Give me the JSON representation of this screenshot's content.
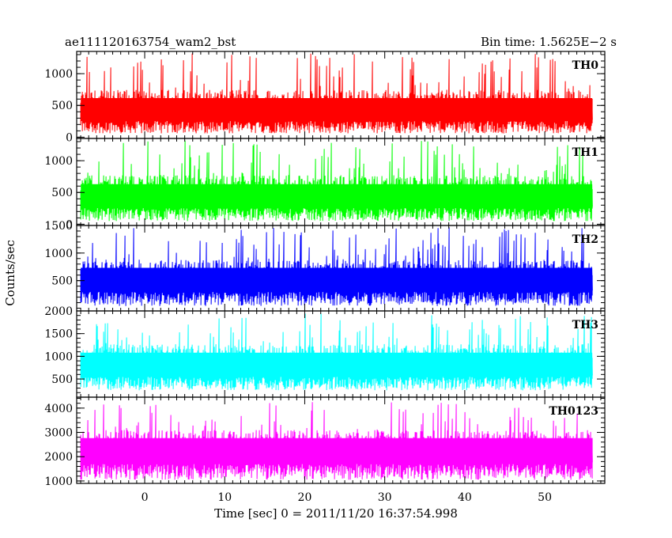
{
  "header": {
    "left_title": "ae111120163754_wam2_bst",
    "right_title": "Bin time: 1.5625E−2 s"
  },
  "chart_data": {
    "type": "line",
    "title": "ae111120163754_wam2_bst",
    "subtitle": "Bin time: 1.5625E−2 s",
    "xlabel": "Time [sec] 0 = 2011/11/20 16:37:54.998",
    "ylabel": "Counts/sec",
    "xlim": [
      -8.5,
      57.5
    ],
    "x_range_data": [
      -8,
      56
    ],
    "x_ticks": [
      0,
      10,
      20,
      30,
      40,
      50
    ],
    "grid": false,
    "panels": [
      {
        "name": "TH0",
        "color": "#ff0000",
        "ylim": [
          -20,
          1350
        ],
        "y_ticks": [
          0,
          500,
          1000
        ],
        "baseline": 60,
        "mean": 450,
        "spread": 300,
        "peak_max": 1340
      },
      {
        "name": "TH1",
        "color": "#00ff00",
        "ylim": [
          -20,
          1350
        ],
        "y_ticks": [
          0,
          500,
          1000
        ],
        "baseline": 50,
        "mean": 460,
        "spread": 310,
        "peak_max": 1330
      },
      {
        "name": "TH2",
        "color": "#0000ff",
        "ylim": [
          -50,
          1500
        ],
        "y_ticks": [
          500,
          1000,
          1500
        ],
        "baseline": 40,
        "mean": 550,
        "spread": 330,
        "peak_max": 1480
      },
      {
        "name": "TH3",
        "color": "#00ffff",
        "ylim": [
          100,
          2000
        ],
        "y_ticks": [
          500,
          1000,
          1500,
          2000
        ],
        "baseline": 250,
        "mean": 850,
        "spread": 420,
        "peak_max": 1950
      },
      {
        "name": "TH0123",
        "color": "#ff00ff",
        "ylim": [
          900,
          4450
        ],
        "y_ticks": [
          1000,
          2000,
          3000,
          4000
        ],
        "baseline": 1050,
        "mean": 2350,
        "spread": 750,
        "peak_max": 4350
      }
    ]
  }
}
